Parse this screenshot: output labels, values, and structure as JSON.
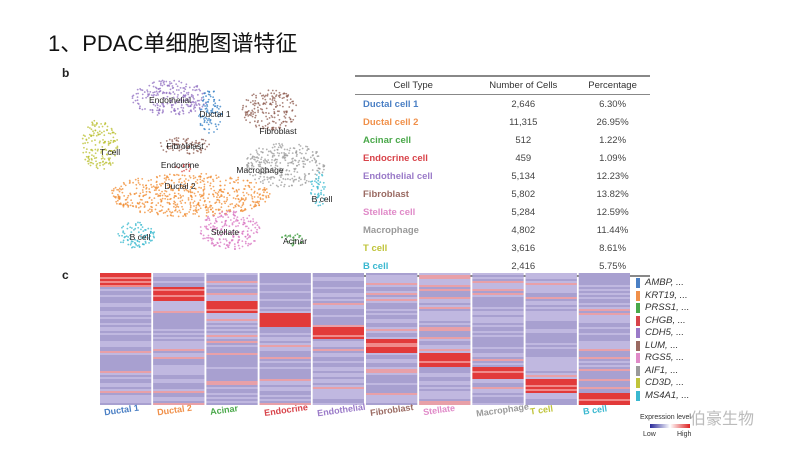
{
  "title": "1、PDAC单细胞图谱特征",
  "panel_b": "b",
  "panel_c": "c",
  "tsne_labels": [
    {
      "label": "Endothelial",
      "color": "#8e6bc0"
    },
    {
      "label": "Ductal 1",
      "color": "#2f7cc4"
    },
    {
      "label": "Fibroblast",
      "color": "#8c5a4e"
    },
    {
      "label": "Fibroblast",
      "color": "#8c5a4e"
    },
    {
      "label": "T cell",
      "color": "#b8bd2a"
    },
    {
      "label": "Endocrine",
      "color": "#d83a3a"
    },
    {
      "label": "Macrophage",
      "color": "#9a9a9a"
    },
    {
      "label": "Ductal 2",
      "color": "#f08a2e"
    },
    {
      "label": "B cell",
      "color": "#2fb5cc"
    },
    {
      "label": "B cell",
      "color": "#2fb5cc"
    },
    {
      "label": "Stellate",
      "color": "#d872c0"
    },
    {
      "label": "Acinar",
      "color": "#3a9a3a"
    }
  ],
  "table": {
    "headers": [
      "Cell Type",
      "Number of Cells",
      "Percentage"
    ],
    "rows": [
      {
        "type": "Ductal cell 1",
        "count": "2,646",
        "pct": "6.30%",
        "color": "#4a7fc4"
      },
      {
        "type": "Ductal cell 2",
        "count": "11,315",
        "pct": "26.95%",
        "color": "#f0904a"
      },
      {
        "type": "Acinar cell",
        "count": "512",
        "pct": "1.22%",
        "color": "#4aa84a"
      },
      {
        "type": "Endocrine cell",
        "count": "459",
        "pct": "1.09%",
        "color": "#d8434a"
      },
      {
        "type": "Endothelial cell",
        "count": "5,134",
        "pct": "12.23%",
        "color": "#9a7ac8"
      },
      {
        "type": "Fibroblast",
        "count": "5,802",
        "pct": "13.82%",
        "color": "#9a6a62"
      },
      {
        "type": "Stellate cell",
        "count": "5,284",
        "pct": "12.59%",
        "color": "#e08ac8"
      },
      {
        "type": "Macrophage",
        "count": "4,802",
        "pct": "11.44%",
        "color": "#9a9a9a"
      },
      {
        "type": "T cell",
        "count": "3,616",
        "pct": "8.61%",
        "color": "#c0c43a"
      },
      {
        "type": "B cell",
        "count": "2,416",
        "pct": "5.75%",
        "color": "#3ab8d0"
      }
    ]
  },
  "heatmap": {
    "columns": [
      "Ductal 1",
      "Ductal 2",
      "Acinar",
      "Endocrine",
      "Endothelial",
      "Fibroblast",
      "Stellate",
      "Macrophage",
      "T cell",
      "B cell"
    ],
    "genes": [
      "AMBP, ...",
      "KRT19, ...",
      "PRSS1, ...",
      "CHGB, ...",
      "CDH5, ...",
      "LUM, ...",
      "RGS5, ...",
      "AIF1, ...",
      "CD3D, ...",
      "MS4A1, ..."
    ],
    "legend_title": "Expression level",
    "low": "Low",
    "high": "High"
  },
  "watermark": "伯豪生物"
}
